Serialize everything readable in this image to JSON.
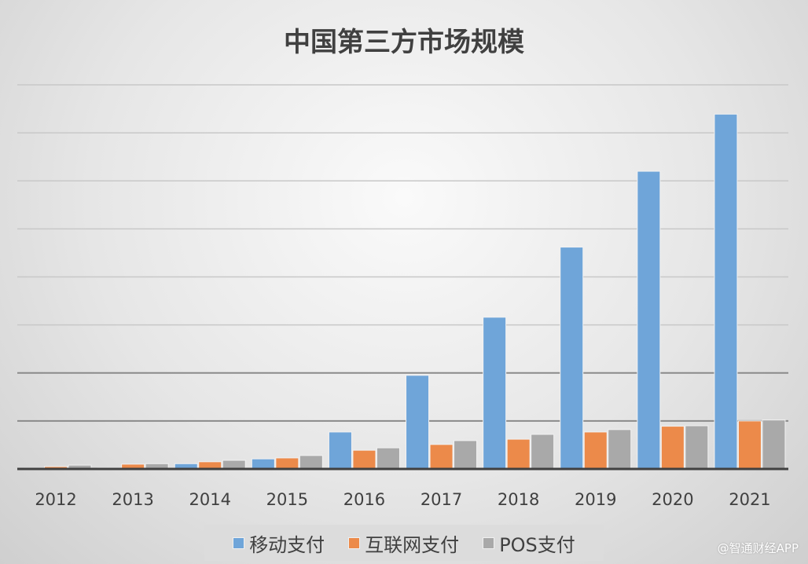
{
  "chart_data": {
    "type": "bar",
    "title": "中国第三方市场规模",
    "categories": [
      "2012",
      "2013",
      "2014",
      "2015",
      "2016",
      "2017",
      "2018",
      "2019",
      "2020",
      "2021"
    ],
    "series": [
      {
        "name": "移动支付",
        "color": "#6fa5d9",
        "values": [
          0.01,
          0.02,
          0.11,
          0.21,
          0.77,
          1.95,
          3.16,
          4.62,
          6.2,
          7.39
        ]
      },
      {
        "name": "互联网支付",
        "color": "#ec8a4a",
        "values": [
          0.05,
          0.1,
          0.15,
          0.23,
          0.39,
          0.51,
          0.62,
          0.77,
          0.89,
          1.0
        ]
      },
      {
        "name": "POS支付",
        "color": "#a9a9a9",
        "values": [
          0.08,
          0.11,
          0.18,
          0.28,
          0.44,
          0.59,
          0.72,
          0.82,
          0.9,
          1.02
        ]
      }
    ],
    "ylim": [
      0,
      8
    ],
    "grid": true,
    "y_tick_labels_shown": false,
    "legend": "bottom"
  },
  "watermark": "@智通财经APP"
}
